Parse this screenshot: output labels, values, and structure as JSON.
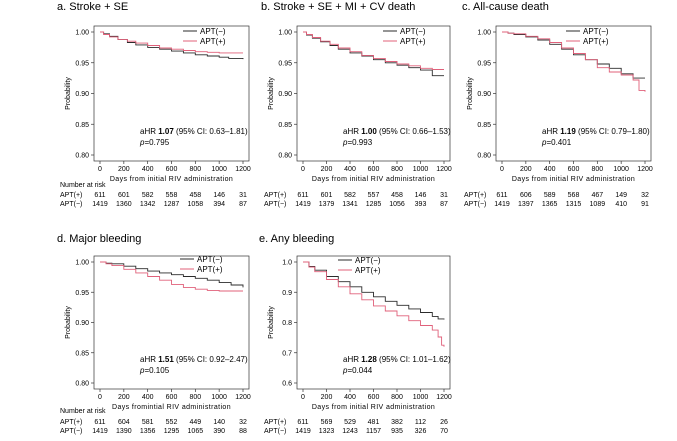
{
  "figure": {
    "number_at_risk_label": "Number at risk"
  },
  "chart_data": [
    {
      "type": "line",
      "panel": "a",
      "title": "a. Stroke + SE",
      "xlabel": "Days from initial RIV administration",
      "ylabel": "Probability",
      "xlim": [
        0,
        1200
      ],
      "ylim": [
        0.8,
        1.0
      ],
      "xticks": [
        "0",
        "200",
        "400",
        "600",
        "800",
        "1000",
        "1200"
      ],
      "yticks": [
        "0.80",
        "0.85",
        "0.90",
        "0.95",
        "1.00"
      ],
      "legend": [
        "APT(−)",
        "APT(+)"
      ],
      "legend_position": "top-right",
      "series": [
        {
          "name": "APT(−)",
          "color": "#2b2b2b",
          "x": [
            0,
            30,
            80,
            150,
            230,
            300,
            400,
            500,
            600,
            700,
            800,
            900,
            1000,
            1080,
            1200
          ],
          "y": [
            1.0,
            0.997,
            0.993,
            0.988,
            0.983,
            0.979,
            0.975,
            0.972,
            0.969,
            0.966,
            0.963,
            0.961,
            0.959,
            0.957,
            0.956
          ]
        },
        {
          "name": "APT(+)",
          "color": "#e0607a",
          "x": [
            0,
            30,
            80,
            150,
            230,
            300,
            400,
            500,
            600,
            700,
            800,
            900,
            1000,
            1200
          ],
          "y": [
            1.0,
            0.996,
            0.992,
            0.988,
            0.985,
            0.982,
            0.978,
            0.974,
            0.972,
            0.97,
            0.968,
            0.967,
            0.966,
            0.966
          ]
        }
      ],
      "annotation": {
        "hr_prefix": "aHR ",
        "hr_value": "1.07",
        "ci": " (95% CI: 0.63–1.81)",
        "p_prefix": "p",
        "p_value": "=0.795"
      },
      "risk_rows": [
        {
          "label": "APT(+)",
          "values": [
            "611",
            "601",
            "582",
            "558",
            "458",
            "146",
            "31"
          ]
        },
        {
          "label": "APT(−)",
          "values": [
            "1419",
            "1360",
            "1342",
            "1287",
            "1058",
            "394",
            "87"
          ]
        }
      ]
    },
    {
      "type": "line",
      "panel": "b",
      "title": "b. Stroke + SE + MI + CV death",
      "xlabel": "Days from initial RIV administration",
      "ylabel": "Probability",
      "xlim": [
        0,
        1200
      ],
      "ylim": [
        0.8,
        1.0
      ],
      "xticks": [
        "0",
        "200",
        "400",
        "600",
        "800",
        "1000",
        "1200"
      ],
      "yticks": [
        "0.80",
        "0.85",
        "0.90",
        "0.95",
        "1.00"
      ],
      "legend": [
        "APT(−)",
        "APT(+)"
      ],
      "legend_position": "top-right",
      "series": [
        {
          "name": "APT(−)",
          "color": "#2b2b2b",
          "x": [
            0,
            30,
            80,
            150,
            230,
            300,
            400,
            500,
            600,
            700,
            800,
            900,
            1000,
            1100,
            1200
          ],
          "y": [
            1.0,
            0.995,
            0.99,
            0.984,
            0.978,
            0.972,
            0.966,
            0.961,
            0.955,
            0.95,
            0.946,
            0.942,
            0.938,
            0.929,
            0.929
          ]
        },
        {
          "name": "APT(+)",
          "color": "#e0607a",
          "x": [
            0,
            30,
            80,
            150,
            230,
            300,
            400,
            500,
            600,
            700,
            800,
            900,
            1000,
            1100,
            1200
          ],
          "y": [
            1.0,
            0.996,
            0.991,
            0.985,
            0.98,
            0.974,
            0.968,
            0.962,
            0.957,
            0.952,
            0.948,
            0.945,
            0.941,
            0.939,
            0.939
          ]
        }
      ],
      "annotation": {
        "hr_prefix": "aHR ",
        "hr_value": "1.00",
        "ci": " (95% CI: 0.66–1.53)",
        "p_prefix": "p",
        "p_value": "=0.993"
      },
      "risk_rows": [
        {
          "label": "APT(+)",
          "values": [
            "611",
            "601",
            "582",
            "557",
            "458",
            "146",
            "31"
          ]
        },
        {
          "label": "APT(−)",
          "values": [
            "1419",
            "1379",
            "1341",
            "1285",
            "1056",
            "393",
            "87"
          ]
        }
      ]
    },
    {
      "type": "line",
      "panel": "c",
      "title": "c. All-cause death",
      "xlabel": "Days from initial RIV administration",
      "ylabel": "Probability",
      "xlim": [
        0,
        1200
      ],
      "ylim": [
        0.8,
        1.0
      ],
      "xticks": [
        "0",
        "200",
        "400",
        "600",
        "800",
        "1000",
        "1200"
      ],
      "yticks": [
        "0.80",
        "0.85",
        "0.90",
        "0.95",
        "1.00"
      ],
      "legend": [
        "APT(−)",
        "APT(+)"
      ],
      "legend_position": "top-right",
      "series": [
        {
          "name": "APT(−)",
          "color": "#2b2b2b",
          "x": [
            0,
            50,
            100,
            200,
            300,
            400,
            500,
            600,
            700,
            800,
            900,
            1000,
            1100,
            1200
          ],
          "y": [
            1.0,
            0.998,
            0.996,
            0.992,
            0.987,
            0.98,
            0.972,
            0.963,
            0.955,
            0.948,
            0.941,
            0.932,
            0.925,
            0.925
          ]
        },
        {
          "name": "APT(+)",
          "color": "#e0607a",
          "x": [
            0,
            50,
            100,
            200,
            300,
            400,
            500,
            600,
            700,
            800,
            900,
            1000,
            1100,
            1150,
            1200
          ],
          "y": [
            1.0,
            0.998,
            0.997,
            0.993,
            0.989,
            0.983,
            0.974,
            0.965,
            0.955,
            0.942,
            0.935,
            0.93,
            0.922,
            0.905,
            0.903
          ]
        }
      ],
      "annotation": {
        "hr_prefix": "aHR ",
        "hr_value": "1.19",
        "ci": " (95% CI: 0.79–1.80)",
        "p_prefix": "p",
        "p_value": "=0.401"
      },
      "risk_rows": [
        {
          "label": "APT(+)",
          "values": [
            "611",
            "606",
            "589",
            "568",
            "467",
            "149",
            "32"
          ]
        },
        {
          "label": "APT(−)",
          "values": [
            "1419",
            "1397",
            "1365",
            "1315",
            "1089",
            "410",
            "91"
          ]
        }
      ]
    },
    {
      "type": "line",
      "panel": "d",
      "title": "d. Major bleeding",
      "xlabel": "Days fromintial RIV administration",
      "ylabel": "Probability",
      "xlim": [
        0,
        1200
      ],
      "ylim": [
        0.8,
        1.0
      ],
      "xticks": [
        "0",
        "200",
        "400",
        "600",
        "800",
        "1000",
        "1200"
      ],
      "yticks": [
        "0.80",
        "0.85",
        "0.90",
        "0.95",
        "1.00"
      ],
      "legend": [
        "APT(−)",
        "APT(+)"
      ],
      "legend_position": "top-right",
      "series": [
        {
          "name": "APT(−)",
          "color": "#2b2b2b",
          "x": [
            0,
            50,
            100,
            200,
            300,
            400,
            500,
            600,
            700,
            800,
            900,
            1000,
            1100,
            1200
          ],
          "y": [
            1.0,
            0.998,
            0.997,
            0.993,
            0.989,
            0.985,
            0.982,
            0.979,
            0.976,
            0.973,
            0.97,
            0.966,
            0.962,
            0.958
          ]
        },
        {
          "name": "APT(+)",
          "color": "#e0607a",
          "x": [
            0,
            50,
            100,
            200,
            300,
            400,
            500,
            600,
            700,
            800,
            900,
            1000,
            1100,
            1200
          ],
          "y": [
            1.0,
            0.997,
            0.994,
            0.988,
            0.982,
            0.976,
            0.97,
            0.963,
            0.958,
            0.955,
            0.953,
            0.952,
            0.952,
            0.952
          ]
        }
      ],
      "annotation": {
        "hr_prefix": "aHR ",
        "hr_value": "1.51",
        "ci": " (95% CI: 0.92–2.47)",
        "p_prefix": "p",
        "p_value": "=0.105"
      },
      "risk_rows": [
        {
          "label": "APT(+)",
          "values": [
            "611",
            "604",
            "581",
            "552",
            "449",
            "140",
            "32"
          ]
        },
        {
          "label": "APT(−)",
          "values": [
            "1419",
            "1390",
            "1356",
            "1295",
            "1065",
            "390",
            "88"
          ]
        }
      ]
    },
    {
      "type": "line",
      "panel": "e",
      "title": "e. Any bleeding",
      "xlabel": "Days from initial RIV administration",
      "ylabel": "Probability",
      "xlim": [
        0,
        1200
      ],
      "ylim": [
        0.6,
        1.0
      ],
      "xticks": [
        "0",
        "200",
        "400",
        "600",
        "800",
        "1000",
        "1200"
      ],
      "yticks": [
        "0.6",
        "0.7",
        "0.8",
        "0.9",
        "1.0"
      ],
      "legend": [
        "APT(−)",
        "APT(+)"
      ],
      "legend_position": "top-right",
      "series": [
        {
          "name": "APT(−)",
          "color": "#2b2b2b",
          "x": [
            0,
            50,
            100,
            200,
            300,
            400,
            500,
            600,
            700,
            800,
            900,
            1000,
            1100,
            1150,
            1200
          ],
          "y": [
            1.0,
            0.985,
            0.973,
            0.952,
            0.935,
            0.918,
            0.9,
            0.885,
            0.87,
            0.857,
            0.845,
            0.833,
            0.82,
            0.812,
            0.81
          ]
        },
        {
          "name": "APT(+)",
          "color": "#e0607a",
          "x": [
            0,
            50,
            100,
            200,
            300,
            400,
            500,
            600,
            700,
            800,
            900,
            1000,
            1100,
            1150,
            1180,
            1200
          ],
          "y": [
            1.0,
            0.983,
            0.968,
            0.942,
            0.918,
            0.895,
            0.875,
            0.855,
            0.838,
            0.822,
            0.806,
            0.79,
            0.775,
            0.752,
            0.725,
            0.72
          ]
        }
      ],
      "annotation": {
        "hr_prefix": "aHR ",
        "hr_value": "1.28",
        "ci": " (95% CI: 1.01–1.62)",
        "p_prefix": "p",
        "p_value": "=0.044"
      },
      "risk_rows": [
        {
          "label": "APT(+)",
          "values": [
            "611",
            "569",
            "529",
            "481",
            "382",
            "112",
            "26"
          ]
        },
        {
          "label": "APT(−)",
          "values": [
            "1419",
            "1323",
            "1243",
            "1157",
            "935",
            "326",
            "70"
          ]
        }
      ]
    }
  ]
}
